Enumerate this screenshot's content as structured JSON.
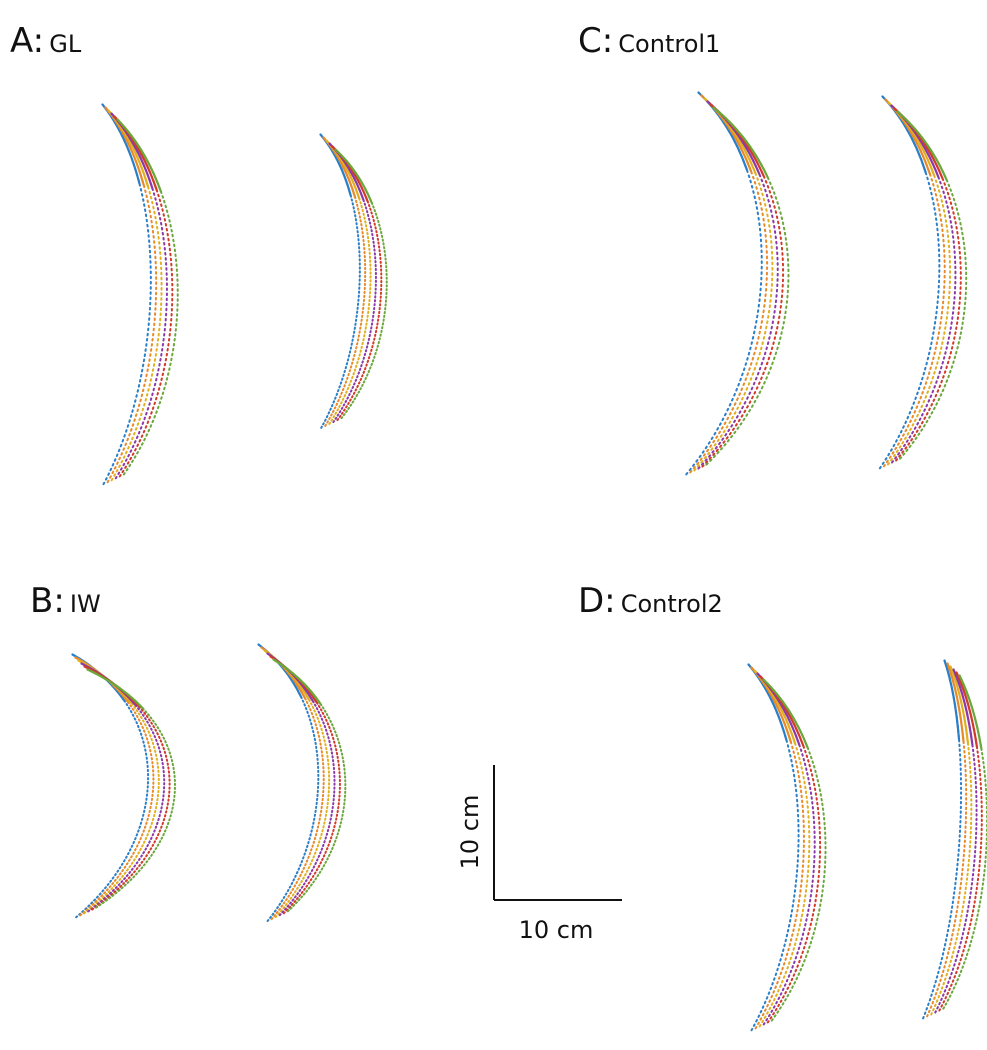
{
  "panels": [
    {
      "letter": "A:",
      "name": "GL"
    },
    {
      "letter": "B:",
      "name": "IW"
    },
    {
      "letter": "C:",
      "name": "Control1"
    },
    {
      "letter": "D:",
      "name": "Control2"
    }
  ],
  "scale_bar": {
    "vertical": "10 cm",
    "horizontal": "10 cm"
  }
}
